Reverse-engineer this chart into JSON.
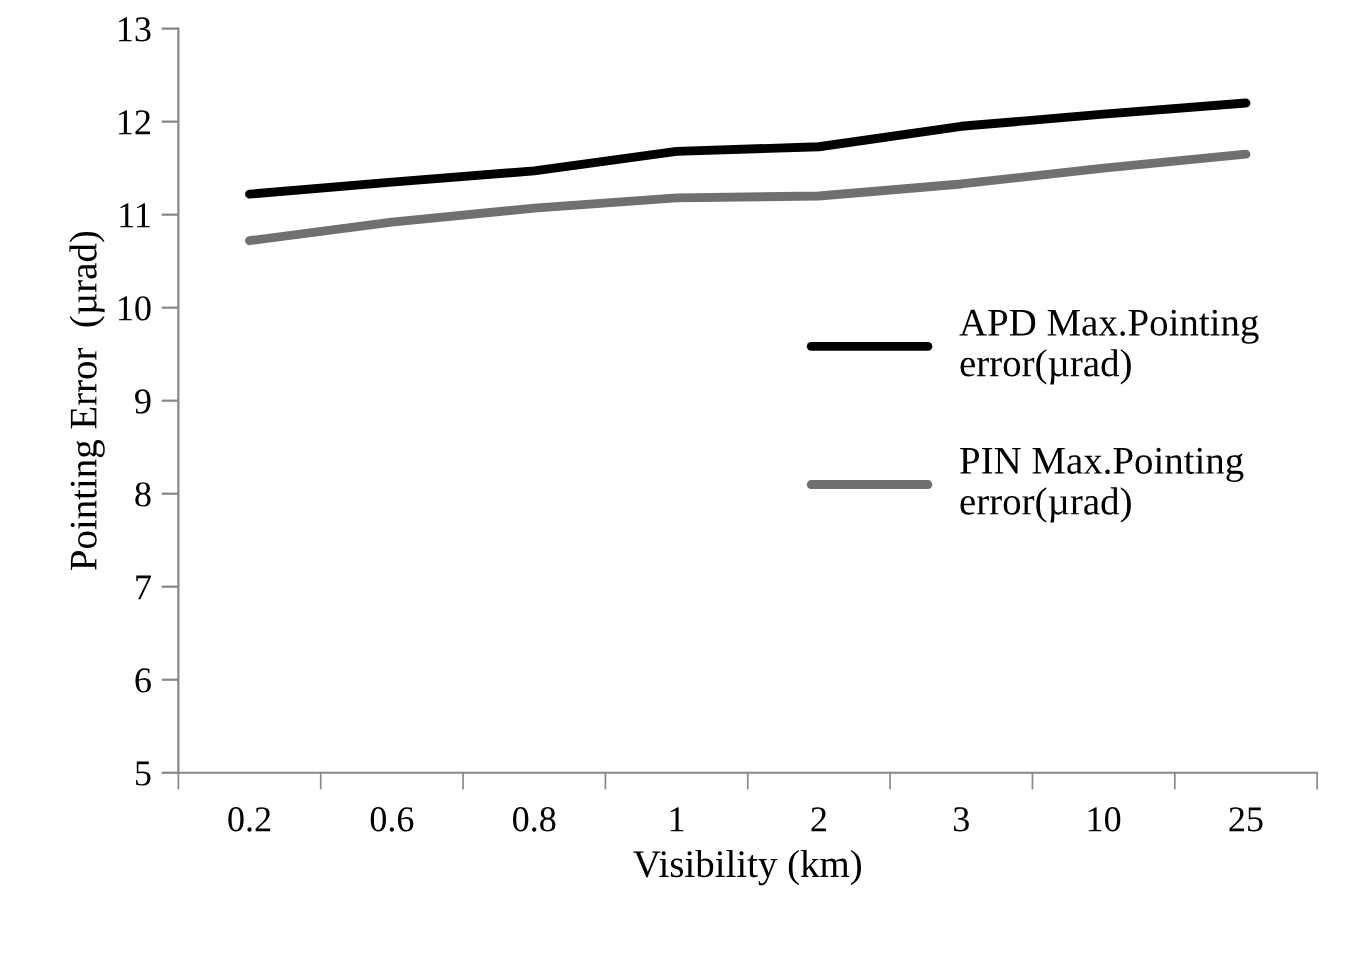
{
  "chart_data": {
    "type": "line",
    "xlabel": "Visibility (km)",
    "ylabel": "Pointing Error  (µrad)",
    "categories": [
      "0.2",
      "0.6",
      "0.8",
      "1",
      "2",
      "3",
      "10",
      "25"
    ],
    "series": [
      {
        "name": "APD Max.Pointing error(µrad)",
        "color": "#000000",
        "values": [
          11.22,
          11.35,
          11.47,
          11.68,
          11.73,
          11.95,
          12.08,
          12.2
        ]
      },
      {
        "name": "PIN Max.Pointing error(µrad)",
        "color": "#707070",
        "values": [
          10.72,
          10.92,
          11.07,
          11.18,
          11.2,
          11.33,
          11.5,
          11.65
        ]
      }
    ],
    "ylim": [
      5,
      13
    ],
    "yticks": [
      5,
      6,
      7,
      8,
      9,
      10,
      11,
      12,
      13
    ],
    "grid": false,
    "legend": "right",
    "marker": "none",
    "line_style": "solid"
  }
}
